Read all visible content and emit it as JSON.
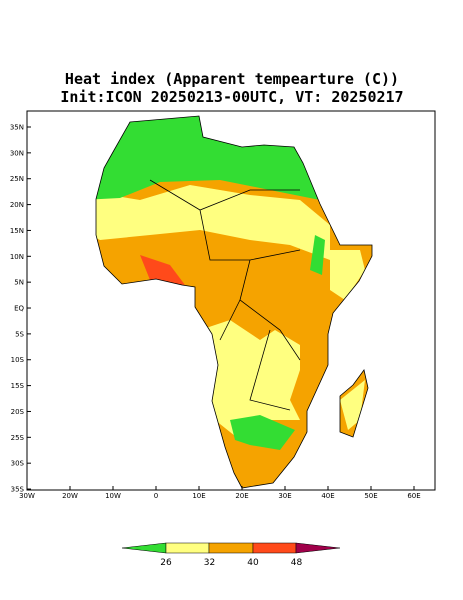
{
  "title": "Heat index (Apparent tempearture (C))",
  "subtitle": "Init:ICON 20250213-00UTC, VT: 20250217",
  "lat_ticks": [
    "35N",
    "30N",
    "25N",
    "20N",
    "15N",
    "10N",
    "5N",
    "EQ",
    "5S",
    "10S",
    "15S",
    "20S",
    "25S",
    "30S",
    "35S"
  ],
  "lon_ticks": [
    "30W",
    "20W",
    "10W",
    "0",
    "10E",
    "20E",
    "30E",
    "40E",
    "50E",
    "60E"
  ],
  "colorbar_labels": [
    "26",
    "32",
    "40",
    "48"
  ]
}
